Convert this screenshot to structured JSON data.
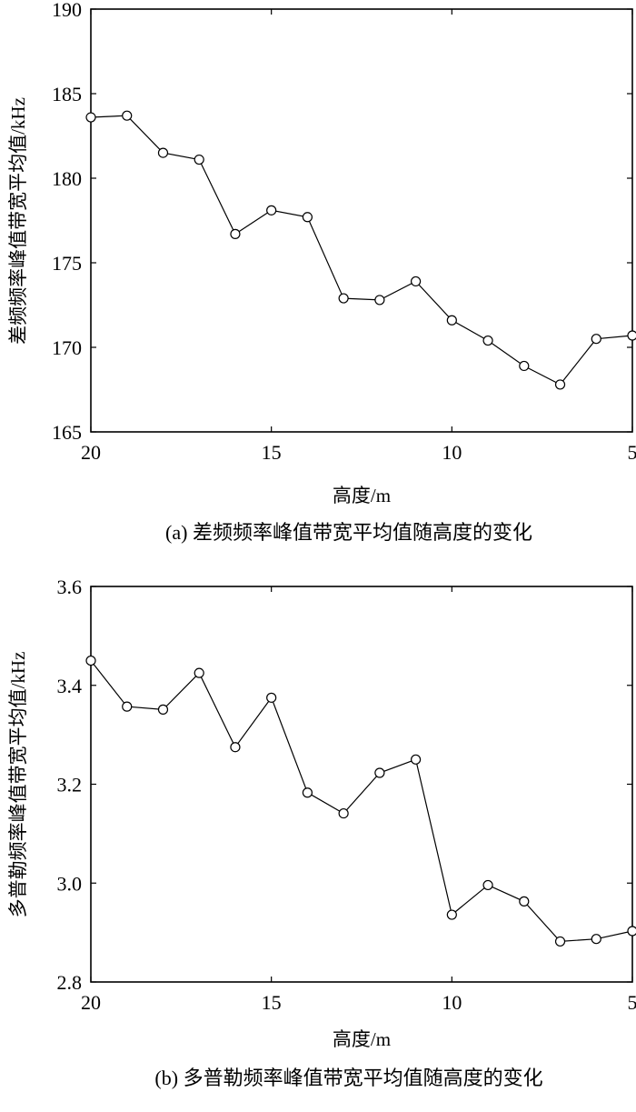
{
  "chart_data": [
    {
      "type": "line",
      "caption": "(a) 差频频率峰值带宽平均值随高度的变化",
      "xlabel": "高度/m",
      "ylabel": "差频频率峰值带宽平均值/kHz",
      "xlim": [
        20,
        5
      ],
      "ylim": [
        165,
        190
      ],
      "x_reversed": true,
      "xticks": [
        "20",
        "15",
        "10",
        "5"
      ],
      "yticks": [
        "165",
        "170",
        "175",
        "180",
        "185",
        "190"
      ],
      "marker": "circle",
      "series": [
        {
          "x": [
            20,
            19,
            18,
            17,
            16,
            15,
            14,
            13,
            12,
            11,
            10,
            9,
            8,
            7,
            6,
            5
          ],
          "values": [
            183.6,
            183.7,
            181.5,
            181.1,
            176.7,
            178.1,
            177.7,
            172.9,
            172.8,
            173.9,
            171.6,
            170.4,
            168.9,
            167.8,
            170.5,
            170.7
          ]
        }
      ]
    },
    {
      "type": "line",
      "caption": "(b) 多普勒频率峰值带宽平均值随高度的变化",
      "xlabel": "高度/m",
      "ylabel": "多普勒频率峰值带宽平均值/kHz",
      "xlim": [
        20,
        5
      ],
      "ylim": [
        2.8,
        3.6
      ],
      "x_reversed": true,
      "xticks": [
        "20",
        "15",
        "10",
        "5"
      ],
      "yticks": [
        "2.8",
        "3.0",
        "3.2",
        "3.4",
        "3.6"
      ],
      "marker": "circle",
      "series": [
        {
          "x": [
            20,
            19,
            18,
            17,
            16,
            15,
            14,
            13,
            12,
            11,
            10,
            9,
            8,
            7,
            6,
            5
          ],
          "values": [
            3.45,
            3.357,
            3.351,
            3.425,
            3.275,
            3.375,
            3.183,
            3.141,
            3.223,
            3.25,
            2.936,
            2.996,
            2.963,
            2.882,
            2.887,
            2.903
          ]
        }
      ]
    }
  ]
}
